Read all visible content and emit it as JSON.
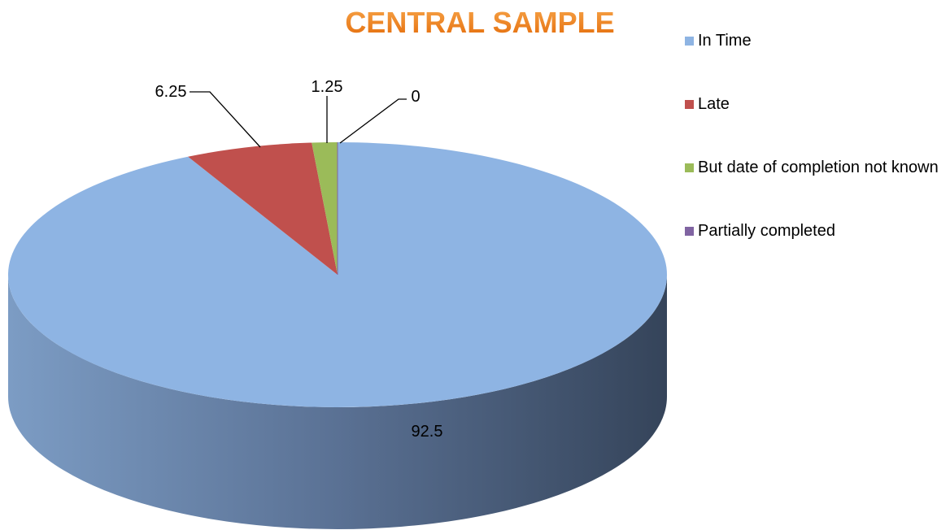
{
  "chart_data": {
    "type": "pie",
    "title": "CENTRAL SAMPLE",
    "categories": [
      "In Time",
      "Late",
      "But date of completion not known",
      "Partially completed"
    ],
    "values": [
      92.5,
      6.25,
      1.25,
      0
    ],
    "colors": [
      "#8EB4E3",
      "#C0504D",
      "#9BBB59",
      "#8064A2"
    ],
    "legend": "right",
    "three_d": true
  }
}
